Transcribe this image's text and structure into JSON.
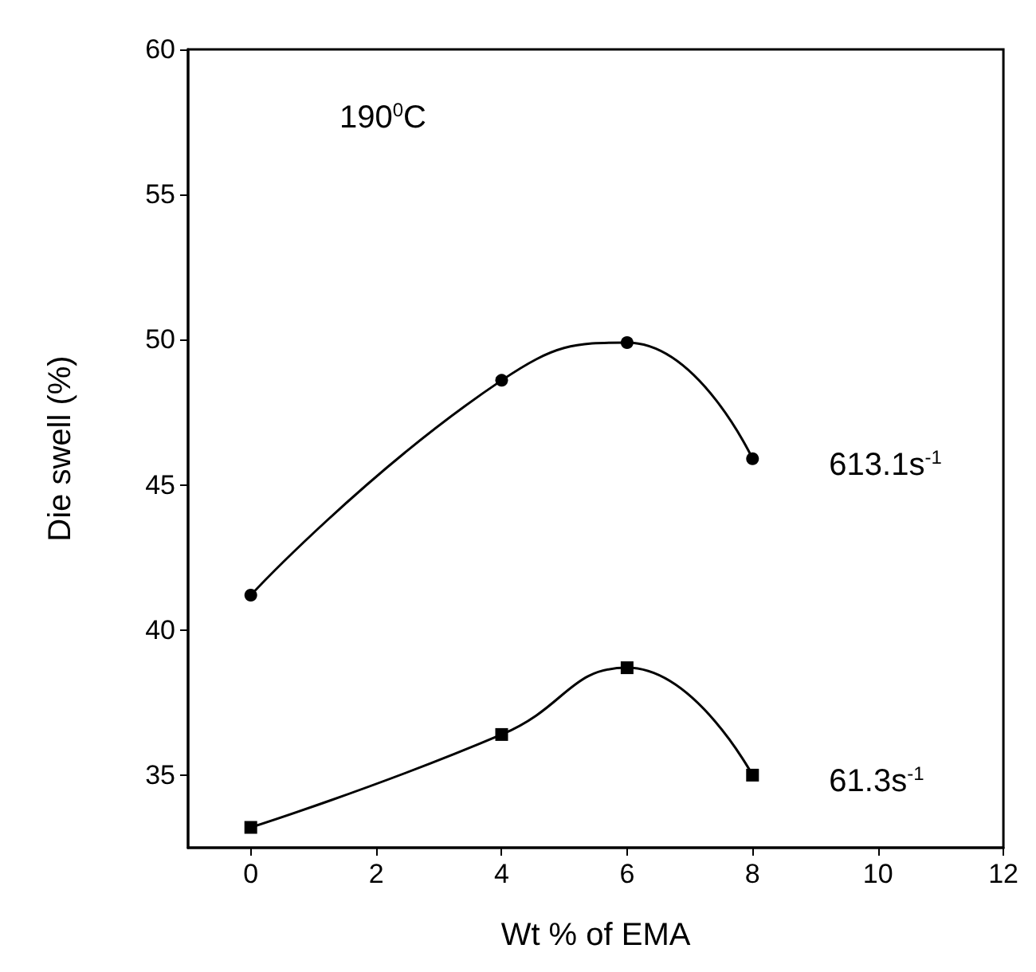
{
  "chart_data": {
    "type": "line",
    "xlabel": "Wt % of EMA",
    "ylabel": "Die swell (%)",
    "annotations": [
      "190$^{0}$C"
    ],
    "x": [
      0,
      4,
      6,
      8
    ],
    "series": [
      {
        "name": "613.1s$^{-1}$",
        "color": "#000000",
        "marker": "circle",
        "values": [
          41.2,
          48.6,
          49.9,
          45.9
        ]
      },
      {
        "name": "61.3s$^{-1}$",
        "color": "#000000",
        "marker": "square",
        "values": [
          33.2,
          36.4,
          38.7,
          35.0
        ]
      }
    ],
    "xlim": [
      -1,
      12
    ],
    "xticks": [
      0,
      2,
      4,
      6,
      8,
      10,
      12
    ],
    "ylim": [
      32.5,
      60
    ],
    "yticks": [
      35,
      40,
      45,
      50,
      55,
      60
    ],
    "legend": false
  }
}
